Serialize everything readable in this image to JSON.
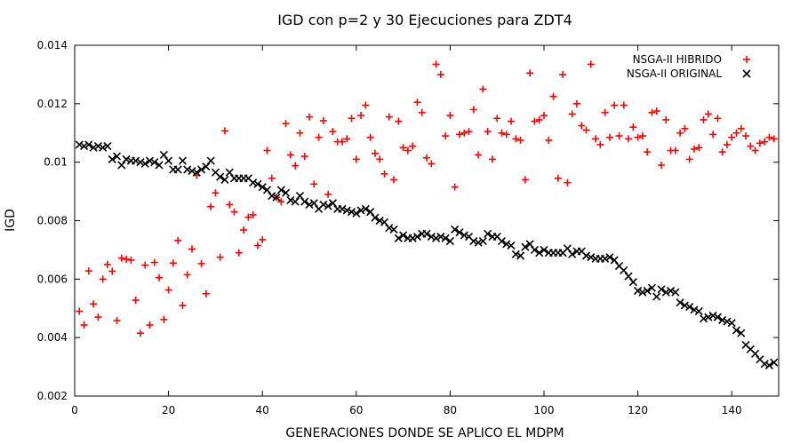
{
  "chart_data": {
    "type": "scatter",
    "title": "IGD con p=2 y 30 Ejecuciones para ZDT4",
    "xlabel": "GENERACIONES DONDE SE APLICO EL MDPM",
    "ylabel": "IGD",
    "xlim": [
      0,
      150
    ],
    "ylim": [
      0.002,
      0.014
    ],
    "xticks": [
      0,
      20,
      40,
      60,
      80,
      100,
      120,
      140
    ],
    "yticks": [
      0.002,
      0.004,
      0.006,
      0.008,
      0.01,
      0.012,
      0.014
    ],
    "xtick_labels": [
      "0",
      "20",
      "40",
      "60",
      "80",
      "100",
      "120",
      "140"
    ],
    "ytick_labels": [
      "0.002",
      "0.004",
      "0.006",
      "0.008",
      "0.01",
      "0.012",
      "0.014"
    ],
    "grid": false,
    "legend_position": "top-right",
    "series": [
      {
        "name": "NSGA-II HIBRIDO",
        "marker": "plus",
        "color": "#ff0000",
        "x": [
          1,
          2,
          3,
          4,
          5,
          6,
          7,
          8,
          9,
          10,
          11,
          12,
          13,
          14,
          15,
          16,
          17,
          18,
          19,
          20,
          21,
          22,
          23,
          24,
          25,
          26,
          27,
          28,
          29,
          30,
          31,
          32,
          33,
          34,
          35,
          36,
          37,
          38,
          39,
          40,
          41,
          42,
          43,
          44,
          45,
          46,
          47,
          48,
          49,
          50,
          51,
          52,
          53,
          54,
          55,
          56,
          57,
          58,
          59,
          60,
          61,
          62,
          63,
          64,
          65,
          66,
          67,
          68,
          69,
          70,
          71,
          72,
          73,
          74,
          75,
          76,
          77,
          78,
          79,
          80,
          81,
          82,
          83,
          84,
          85,
          86,
          87,
          88,
          89,
          90,
          91,
          92,
          93,
          94,
          95,
          96,
          97,
          98,
          99,
          100,
          101,
          102,
          103,
          104,
          105,
          106,
          107,
          108,
          109,
          110,
          111,
          112,
          113,
          114,
          115,
          116,
          117,
          118,
          119,
          120,
          121,
          122,
          123,
          124,
          125,
          126,
          127,
          128,
          129,
          130,
          131,
          132,
          133,
          134,
          135,
          136,
          137,
          138,
          139,
          140,
          141,
          142,
          143,
          144,
          145,
          146,
          147,
          148,
          149
        ],
        "y": [
          0.0049,
          0.00443,
          0.00628,
          0.00515,
          0.0047,
          0.006,
          0.0065,
          0.00627,
          0.00458,
          0.00672,
          0.00668,
          0.00665,
          0.00528,
          0.00415,
          0.00648,
          0.00443,
          0.00657,
          0.00605,
          0.00462,
          0.00563,
          0.00655,
          0.00732,
          0.0051,
          0.00615,
          0.00703,
          0.00955,
          0.00653,
          0.0055,
          0.00848,
          0.00895,
          0.00675,
          0.01107,
          0.00855,
          0.0083,
          0.0069,
          0.00768,
          0.00812,
          0.0082,
          0.00715,
          0.00735,
          0.0104,
          0.00945,
          0.0088,
          0.00865,
          0.01132,
          0.01025,
          0.00988,
          0.011,
          0.0102,
          0.01155,
          0.00925,
          0.01085,
          0.01142,
          0.0089,
          0.01105,
          0.0107,
          0.0107,
          0.0108,
          0.0115,
          0.0101,
          0.0116,
          0.01195,
          0.01085,
          0.0103,
          0.0101,
          0.0096,
          0.01155,
          0.0094,
          0.0114,
          0.0105,
          0.0104,
          0.01055,
          0.01205,
          0.0117,
          0.01015,
          0.00995,
          0.01335,
          0.013,
          0.0109,
          0.0116,
          0.00915,
          0.01095,
          0.011,
          0.01105,
          0.0118,
          0.01025,
          0.0125,
          0.01105,
          0.0101,
          0.0115,
          0.011,
          0.01095,
          0.0114,
          0.0108,
          0.01075,
          0.0094,
          0.01305,
          0.0114,
          0.01145,
          0.0116,
          0.01075,
          0.01225,
          0.00945,
          0.013,
          0.0093,
          0.01165,
          0.012,
          0.01125,
          0.0111,
          0.01335,
          0.0108,
          0.0106,
          0.0117,
          0.01085,
          0.01195,
          0.0109,
          0.01195,
          0.0108,
          0.0112,
          0.01085,
          0.0109,
          0.01035,
          0.0117,
          0.01175,
          0.0099,
          0.01145,
          0.0104,
          0.0104,
          0.011,
          0.01115,
          0.0101,
          0.01045,
          0.0105,
          0.01145,
          0.01165,
          0.01095,
          0.0115,
          0.01035,
          0.0106,
          0.01085,
          0.011,
          0.01115,
          0.0109,
          0.01055,
          0.0104,
          0.01065,
          0.0107,
          0.01085,
          0.0108
        ]
      },
      {
        "name": "NSGA-II ORIGINAL",
        "marker": "cross",
        "color": "#000000",
        "x": [
          1,
          2,
          3,
          4,
          5,
          6,
          7,
          8,
          9,
          10,
          11,
          12,
          13,
          14,
          15,
          16,
          17,
          18,
          19,
          20,
          21,
          22,
          23,
          24,
          25,
          26,
          27,
          28,
          29,
          30,
          31,
          32,
          33,
          34,
          35,
          36,
          37,
          38,
          39,
          40,
          41,
          42,
          43,
          44,
          45,
          46,
          47,
          48,
          49,
          50,
          51,
          52,
          53,
          54,
          55,
          56,
          57,
          58,
          59,
          60,
          61,
          62,
          63,
          64,
          65,
          66,
          67,
          68,
          69,
          70,
          71,
          72,
          73,
          74,
          75,
          76,
          77,
          78,
          79,
          80,
          81,
          82,
          83,
          84,
          85,
          86,
          87,
          88,
          89,
          90,
          91,
          92,
          93,
          94,
          95,
          96,
          97,
          98,
          99,
          100,
          101,
          102,
          103,
          104,
          105,
          106,
          107,
          108,
          109,
          110,
          111,
          112,
          113,
          114,
          115,
          116,
          117,
          118,
          119,
          120,
          121,
          122,
          123,
          124,
          125,
          126,
          127,
          128,
          129,
          130,
          131,
          132,
          133,
          134,
          135,
          136,
          137,
          138,
          139,
          140,
          141,
          142,
          143,
          144,
          145,
          146,
          147,
          148,
          149
        ],
        "y": [
          0.0106,
          0.01055,
          0.0106,
          0.0105,
          0.01055,
          0.0105,
          0.01055,
          0.0101,
          0.0102,
          0.0099,
          0.0101,
          0.01005,
          0.01005,
          0.01,
          0.00995,
          0.01005,
          0.01,
          0.0099,
          0.01025,
          0.01005,
          0.00975,
          0.00975,
          0.01005,
          0.00975,
          0.0097,
          0.00965,
          0.00975,
          0.00985,
          0.01005,
          0.00965,
          0.0095,
          0.0094,
          0.00965,
          0.00945,
          0.00945,
          0.00945,
          0.00945,
          0.0093,
          0.00925,
          0.00915,
          0.00905,
          0.00885,
          0.0088,
          0.00905,
          0.00895,
          0.0087,
          0.00865,
          0.00885,
          0.00865,
          0.00855,
          0.0086,
          0.0084,
          0.00855,
          0.0085,
          0.0086,
          0.0084,
          0.0084,
          0.00835,
          0.0083,
          0.00825,
          0.00835,
          0.0084,
          0.0083,
          0.0081,
          0.008,
          0.00795,
          0.00775,
          0.0077,
          0.0074,
          0.0075,
          0.0074,
          0.0074,
          0.00745,
          0.00755,
          0.00755,
          0.00745,
          0.0074,
          0.00745,
          0.0074,
          0.0073,
          0.0077,
          0.0076,
          0.0075,
          0.00745,
          0.0073,
          0.00725,
          0.0073,
          0.00755,
          0.00745,
          0.00745,
          0.0073,
          0.0072,
          0.00715,
          0.00685,
          0.0068,
          0.0071,
          0.0072,
          0.007,
          0.0069,
          0.007,
          0.0069,
          0.0069,
          0.0069,
          0.0069,
          0.00705,
          0.00685,
          0.00695,
          0.00695,
          0.0068,
          0.00675,
          0.0067,
          0.0067,
          0.0067,
          0.00675,
          0.00665,
          0.00645,
          0.0063,
          0.0061,
          0.0059,
          0.0056,
          0.00555,
          0.0056,
          0.0057,
          0.0054,
          0.00565,
          0.00555,
          0.0056,
          0.00555,
          0.0052,
          0.0051,
          0.00505,
          0.00495,
          0.0049,
          0.00465,
          0.0047,
          0.00475,
          0.0047,
          0.0046,
          0.00455,
          0.0045,
          0.00425,
          0.00415,
          0.00375,
          0.0036,
          0.00345,
          0.00325,
          0.0031,
          0.00305,
          0.00315
        ]
      }
    ]
  }
}
